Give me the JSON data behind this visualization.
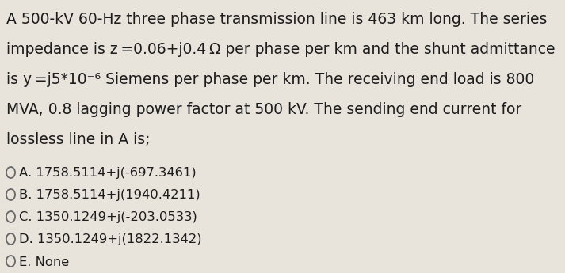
{
  "background_color": "#e8e4dc",
  "line1": "A 500-kV 60-Hz three phase transmission line is 463 km long. The series",
  "line2": "impedance is z =0.06+j0.4 Ω per phase per km and the shunt admittance",
  "line3": "is y =j5*10⁻⁶ Siemens per phase per km. The receiving end load is 800",
  "line4": "MVA, 0.8 lagging power factor at 500 kV. The sending end current for",
  "line5": "lossless line in A is;",
  "options": [
    "A. 1758.5114+j(-697.3461)",
    "B. 1758.5114+j(1940.4211)",
    "C. 1350.1249+j(-203.0533)",
    "D. 1350.1249+j(1822.1342)",
    "E. None"
  ],
  "text_color": "#1c1c1c",
  "circle_color": "#666666",
  "para_fontsize": 13.5,
  "opt_fontsize": 11.8,
  "fig_width": 7.13,
  "fig_height": 3.45,
  "dpi": 100
}
